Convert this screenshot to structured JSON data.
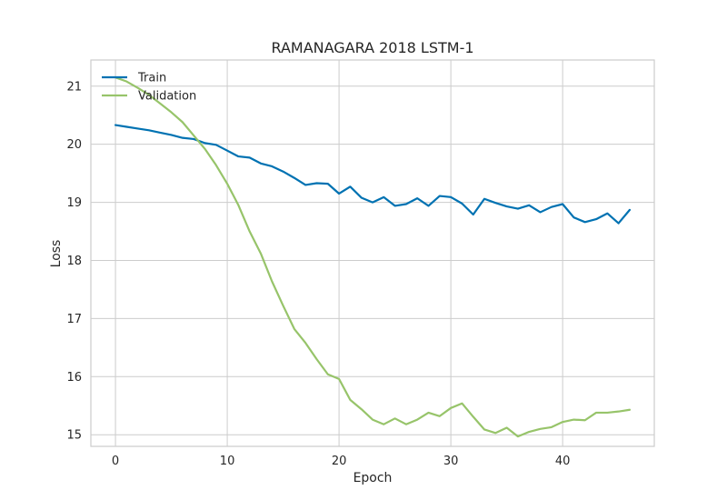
{
  "chart_data": {
    "type": "line",
    "title": "RAMANAGARA 2018 LSTM-1",
    "xlabel": "Epoch",
    "ylabel": "Loss",
    "xlim": [
      -2.2,
      48.2
    ],
    "ylim": [
      14.8,
      21.45
    ],
    "xticks": [
      0,
      10,
      20,
      30,
      40
    ],
    "yticks": [
      15,
      16,
      17,
      18,
      19,
      20,
      21
    ],
    "grid": true,
    "legend_position": "top-left",
    "series": [
      {
        "name": "Train",
        "color": "#0072b2",
        "x": [
          0,
          1,
          2,
          3,
          4,
          5,
          6,
          7,
          8,
          9,
          10,
          11,
          12,
          13,
          14,
          15,
          16,
          17,
          18,
          19,
          20,
          21,
          22,
          23,
          24,
          25,
          26,
          27,
          28,
          29,
          30,
          31,
          32,
          33,
          34,
          35,
          36,
          37,
          38,
          39,
          40,
          41,
          42,
          43,
          44,
          45,
          46
        ],
        "y": [
          20.33,
          20.3,
          20.27,
          20.24,
          20.2,
          20.16,
          20.11,
          20.09,
          20.02,
          19.99,
          19.89,
          19.79,
          19.77,
          19.67,
          19.62,
          19.53,
          19.42,
          19.3,
          19.33,
          19.32,
          19.15,
          19.27,
          19.08,
          19.0,
          19.09,
          18.94,
          18.97,
          19.07,
          18.94,
          19.11,
          19.09,
          18.98,
          18.79,
          19.06,
          18.99,
          18.93,
          18.89,
          18.95,
          18.83,
          18.92,
          18.97,
          18.74,
          18.66,
          18.71,
          18.81,
          18.64,
          18.87
        ]
      },
      {
        "name": "Validation",
        "color": "#97c46a",
        "x": [
          0,
          1,
          2,
          3,
          4,
          5,
          6,
          7,
          8,
          9,
          10,
          11,
          12,
          13,
          14,
          15,
          16,
          17,
          18,
          19,
          20,
          21,
          22,
          23,
          24,
          25,
          26,
          27,
          28,
          29,
          30,
          31,
          32,
          33,
          34,
          35,
          36,
          37,
          38,
          39,
          40,
          41,
          42,
          43,
          44,
          45,
          46
        ],
        "y": [
          21.15,
          21.08,
          20.97,
          20.85,
          20.7,
          20.55,
          20.38,
          20.15,
          19.92,
          19.64,
          19.32,
          18.95,
          18.5,
          18.12,
          17.64,
          17.22,
          16.82,
          16.58,
          16.3,
          16.04,
          15.96,
          15.6,
          15.44,
          15.26,
          15.18,
          15.28,
          15.18,
          15.26,
          15.38,
          15.32,
          15.46,
          15.54,
          15.31,
          15.09,
          15.03,
          15.12,
          14.97,
          15.05,
          15.1,
          15.13,
          15.22,
          15.26,
          15.25,
          15.38,
          15.38,
          15.4,
          15.43
        ]
      }
    ]
  }
}
